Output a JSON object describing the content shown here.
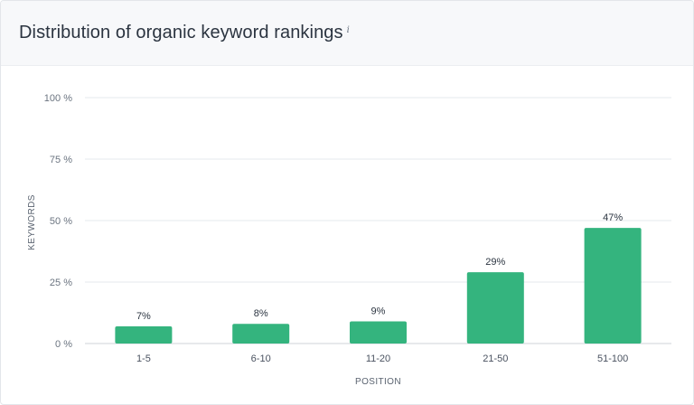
{
  "header": {
    "title": "Distribution of organic keyword rankings",
    "info_icon": "info-icon",
    "info_glyph": "i"
  },
  "colors": {
    "bar": "#34b47e",
    "grid": "#e6e8ec",
    "header_bg": "#f7f8fa"
  },
  "chart_data": {
    "type": "bar",
    "categories": [
      "1-5",
      "6-10",
      "11-20",
      "21-50",
      "51-100"
    ],
    "values": [
      7,
      8,
      9,
      29,
      47
    ],
    "value_labels": [
      "7%",
      "8%",
      "9%",
      "29%",
      "47%"
    ],
    "title": "Distribution of organic keyword rankings",
    "xlabel": "POSITION",
    "ylabel": "KEYWORDS",
    "ylim": [
      0,
      100
    ],
    "yticks": [
      0,
      25,
      50,
      75,
      100
    ],
    "ytick_labels": [
      "0 %",
      "25 %",
      "50 %",
      "75 %",
      "100 %"
    ],
    "grid": true,
    "legend": "none"
  }
}
